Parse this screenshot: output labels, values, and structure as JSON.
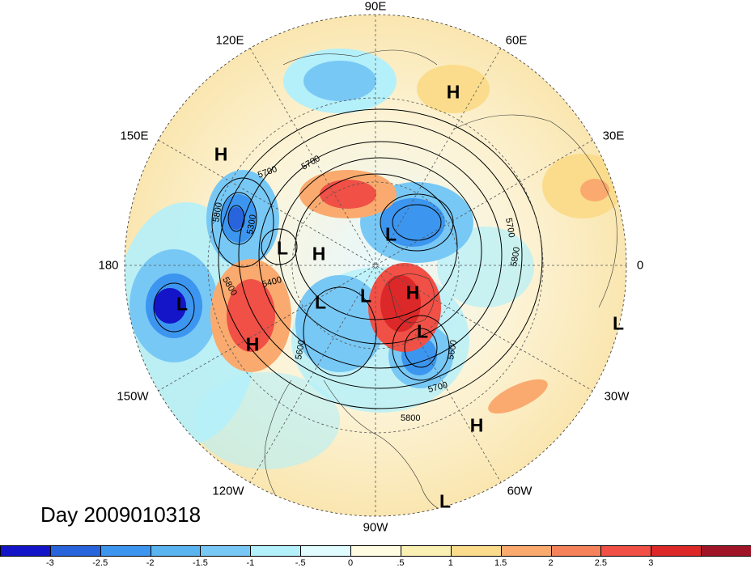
{
  "map": {
    "projection": "north-polar-stereographic",
    "variable": "500hPa geopotential height contours with standardized anomaly shading",
    "longitude_labels": [
      "90E",
      "60E",
      "30E",
      "0",
      "30W",
      "60W",
      "90W",
      "120W",
      "150W",
      "180",
      "150E",
      "120E"
    ],
    "contour_labels": [
      "5300",
      "5400",
      "5600",
      "5600",
      "5700",
      "5700",
      "5700",
      "5700",
      "5800",
      "5800",
      "5800",
      "5800"
    ],
    "pressure_centers": [
      "H",
      "H",
      "H",
      "H",
      "H",
      "H",
      "L",
      "L",
      "L",
      "L",
      "L",
      "L",
      "L",
      "L"
    ]
  },
  "day_label": "Day 2009010318",
  "colorbar": {
    "colors": [
      "#1414c8",
      "#2864dc",
      "#3c96f0",
      "#5ab4f0",
      "#78c8f5",
      "#b4f0fa",
      "#e1fcff",
      "#fffce1",
      "#faf0b4",
      "#fadc8c",
      "#faaa6e",
      "#f5825a",
      "#f05046",
      "#dc2828",
      "#a01428"
    ],
    "ticks": [
      "-3",
      "-2.5",
      "-2",
      "-1.5",
      "-1",
      "-.5",
      "0",
      ".5",
      "1",
      "1.5",
      "2",
      "2.5",
      "3"
    ]
  }
}
